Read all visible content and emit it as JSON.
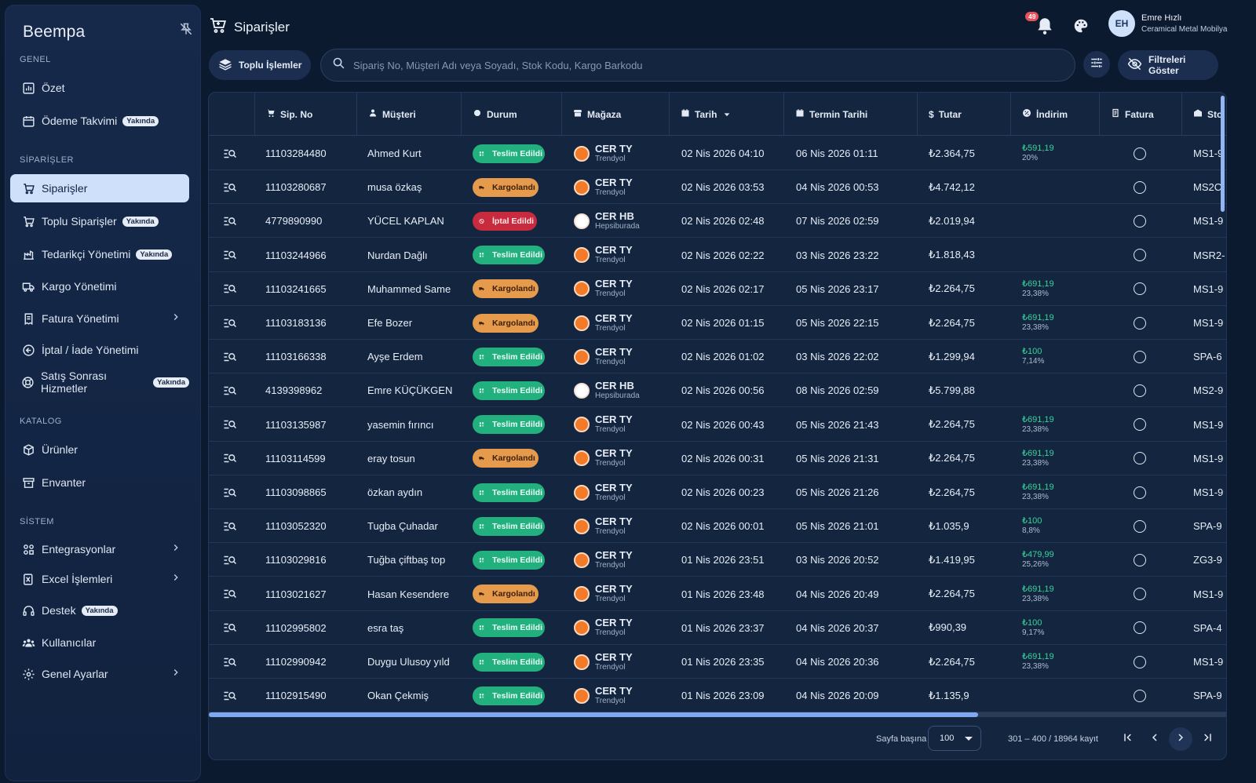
{
  "brand": "Beempa",
  "sidebar": {
    "sections": [
      {
        "label": "GENEL"
      },
      {
        "label": "SİPARİŞLER"
      },
      {
        "label": "KATALOG"
      },
      {
        "label": "SİSTEM"
      }
    ],
    "items": [
      {
        "label": "Özet",
        "icon": "chart-icon"
      },
      {
        "label": "Ödeme Takvimi",
        "badge": "Yakında",
        "icon": "calendar-icon"
      },
      {
        "label": "Siparişler",
        "icon": "cart-icon",
        "active": true
      },
      {
        "label": "Toplu Siparişler",
        "badge": "Yakında",
        "icon": "bulk-cart-icon"
      },
      {
        "label": "Tedarikçi Yönetimi",
        "badge": "Yakında",
        "icon": "supplier-icon"
      },
      {
        "label": "Kargo Yönetimi",
        "icon": "truck-icon"
      },
      {
        "label": "Fatura Yönetimi",
        "icon": "invoice-icon",
        "expandable": true
      },
      {
        "label": "İptal / İade Yönetimi",
        "icon": "return-icon"
      },
      {
        "label": "Satış Sonrası Hizmetler",
        "badge": "Yakında",
        "icon": "support-icon"
      },
      {
        "label": "Ürünler",
        "icon": "box-icon"
      },
      {
        "label": "Envanter",
        "icon": "inventory-icon"
      },
      {
        "label": "Entegrasyonlar",
        "icon": "integration-icon",
        "expandable": true
      },
      {
        "label": "Excel İşlemleri",
        "icon": "excel-icon",
        "expandable": true
      },
      {
        "label": "Destek",
        "badge": "Yakında",
        "icon": "headset-icon"
      },
      {
        "label": "Kullanıcılar",
        "icon": "users-icon"
      },
      {
        "label": "Genel Ayarlar",
        "icon": "gear-icon",
        "expandable": true
      }
    ]
  },
  "header": {
    "title": "Siparişler",
    "notification_count": "49",
    "user_initials": "EH",
    "user_name": "Emre Hızlı",
    "user_org": "Ceramical Metal Mobilya"
  },
  "toolbar": {
    "bulk_label": "Toplu İşlemler",
    "search_placeholder": "Sipariş No, Müşteri Adı veya Soyadı, Stok Kodu, Kargo Barkodu",
    "filter_label": "Filtreleri Göster"
  },
  "table": {
    "columns": [
      "Sip. No",
      "Müşteri",
      "Durum",
      "Mağaza",
      "Tarih",
      "Termin Tarihi",
      "Tutar",
      "İndirim",
      "Fatura",
      "Sto"
    ],
    "rows": [
      {
        "no": "11103284480",
        "customer": "Ahmed Kurt",
        "status": "Teslim Edildi",
        "kind": "green",
        "store": "CER TY",
        "store_sub": "Trendyol",
        "date": "02 Nis 2026 04:10",
        "deadline": "06 Nis 2026 01:11",
        "amount": "₺2.364,75",
        "disc": "₺591,19",
        "disc_pct": "20%",
        "stock": "MS1-9"
      },
      {
        "no": "11103280687",
        "customer": "musa özkaş",
        "status": "Kargolandı",
        "kind": "orange",
        "store": "CER TY",
        "store_sub": "Trendyol",
        "date": "02 Nis 2026 03:53",
        "deadline": "04 Nis 2026 00:53",
        "amount": "₺4.742,12",
        "disc": "",
        "disc_pct": "",
        "stock": "MS2C"
      },
      {
        "no": "4779890990",
        "customer": "YÜCEL KAPLAN",
        "status": "İptal Edildi",
        "kind": "red",
        "store": "CER HB",
        "store_sub": "Hepsiburada",
        "date": "02 Nis 2026 02:48",
        "deadline": "07 Nis 2026 02:59",
        "amount": "₺2.019,94",
        "disc": "",
        "disc_pct": "",
        "stock": "MS1-9"
      },
      {
        "no": "11103244966",
        "customer": "Nurdan Dağlı",
        "status": "Teslim Edildi",
        "kind": "green",
        "store": "CER TY",
        "store_sub": "Trendyol",
        "date": "02 Nis 2026 02:22",
        "deadline": "03 Nis 2026 23:22",
        "amount": "₺1.818,43",
        "disc": "",
        "disc_pct": "",
        "stock": "MSR2-"
      },
      {
        "no": "11103241665",
        "customer": "Muhammed Same",
        "status": "Kargolandı",
        "kind": "orange",
        "store": "CER TY",
        "store_sub": "Trendyol",
        "date": "02 Nis 2026 02:17",
        "deadline": "05 Nis 2026 23:17",
        "amount": "₺2.264,75",
        "disc": "₺691,19",
        "disc_pct": "23,38%",
        "stock": "MS1-9"
      },
      {
        "no": "11103183136",
        "customer": "Efe Bozer",
        "status": "Kargolandı",
        "kind": "orange",
        "store": "CER TY",
        "store_sub": "Trendyol",
        "date": "02 Nis 2026 01:15",
        "deadline": "05 Nis 2026 22:15",
        "amount": "₺2.264,75",
        "disc": "₺691,19",
        "disc_pct": "23,38%",
        "stock": "MS1-9"
      },
      {
        "no": "11103166338",
        "customer": "Ayşe Erdem",
        "status": "Teslim Edildi",
        "kind": "green",
        "store": "CER TY",
        "store_sub": "Trendyol",
        "date": "02 Nis 2026 01:02",
        "deadline": "03 Nis 2026 22:02",
        "amount": "₺1.299,94",
        "disc": "₺100",
        "disc_pct": "7,14%",
        "stock": "SPA-6"
      },
      {
        "no": "4139398962",
        "customer": "Emre KÜÇÜKGEN",
        "status": "Teslim Edildi",
        "kind": "green",
        "store": "CER HB",
        "store_sub": "Hepsiburada",
        "date": "02 Nis 2026 00:56",
        "deadline": "08 Nis 2026 02:59",
        "amount": "₺5.799,88",
        "disc": "",
        "disc_pct": "",
        "stock": "MS2-9"
      },
      {
        "no": "11103135987",
        "customer": "yasemin fırıncı",
        "status": "Teslim Edildi",
        "kind": "green",
        "store": "CER TY",
        "store_sub": "Trendyol",
        "date": "02 Nis 2026 00:43",
        "deadline": "05 Nis 2026 21:43",
        "amount": "₺2.264,75",
        "disc": "₺691,19",
        "disc_pct": "23,38%",
        "stock": "MS1-9"
      },
      {
        "no": "11103114599",
        "customer": "eray tosun",
        "status": "Kargolandı",
        "kind": "orange",
        "store": "CER TY",
        "store_sub": "Trendyol",
        "date": "02 Nis 2026 00:31",
        "deadline": "05 Nis 2026 21:31",
        "amount": "₺2.264,75",
        "disc": "₺691,19",
        "disc_pct": "23,38%",
        "stock": "MS1-9"
      },
      {
        "no": "11103098865",
        "customer": "özkan aydın",
        "status": "Teslim Edildi",
        "kind": "green",
        "store": "CER TY",
        "store_sub": "Trendyol",
        "date": "02 Nis 2026 00:23",
        "deadline": "05 Nis 2026 21:26",
        "amount": "₺2.264,75",
        "disc": "₺691,19",
        "disc_pct": "23,38%",
        "stock": "MS1-9"
      },
      {
        "no": "11103052320",
        "customer": "Tugba Çuhadar",
        "status": "Teslim Edildi",
        "kind": "green",
        "store": "CER TY",
        "store_sub": "Trendyol",
        "date": "02 Nis 2026 00:01",
        "deadline": "05 Nis 2026 21:01",
        "amount": "₺1.035,9",
        "disc": "₺100",
        "disc_pct": "8,8%",
        "stock": "SPA-9"
      },
      {
        "no": "11103029816",
        "customer": "Tuğba çiftbaş top",
        "status": "Teslim Edildi",
        "kind": "green",
        "store": "CER TY",
        "store_sub": "Trendyol",
        "date": "01 Nis 2026 23:51",
        "deadline": "03 Nis 2026 20:52",
        "amount": "₺1.419,95",
        "disc": "₺479,99",
        "disc_pct": "25,26%",
        "stock": "ZG3-9"
      },
      {
        "no": "11103021627",
        "customer": "Hasan Kesendere",
        "status": "Kargolandı",
        "kind": "orange",
        "store": "CER TY",
        "store_sub": "Trendyol",
        "date": "01 Nis 2026 23:48",
        "deadline": "04 Nis 2026 20:49",
        "amount": "₺2.264,75",
        "disc": "₺691,19",
        "disc_pct": "23,38%",
        "stock": "MS1-9"
      },
      {
        "no": "11102995802",
        "customer": "esra taş",
        "status": "Teslim Edildi",
        "kind": "green",
        "store": "CER TY",
        "store_sub": "Trendyol",
        "date": "01 Nis 2026 23:37",
        "deadline": "04 Nis 2026 20:37",
        "amount": "₺990,39",
        "disc": "₺100",
        "disc_pct": "9,17%",
        "stock": "SPA-4"
      },
      {
        "no": "11102990942",
        "customer": "Duygu Ulusoy yıld",
        "status": "Teslim Edildi",
        "kind": "green",
        "store": "CER TY",
        "store_sub": "Trendyol",
        "date": "01 Nis 2026 23:35",
        "deadline": "04 Nis 2026 20:36",
        "amount": "₺2.264,75",
        "disc": "₺691,19",
        "disc_pct": "23,38%",
        "stock": "MS1-9"
      },
      {
        "no": "11102915490",
        "customer": "Okan Çekmiş",
        "status": "Teslim Edildi",
        "kind": "green",
        "store": "CER TY",
        "store_sub": "Trendyol",
        "date": "01 Nis 2026 23:09",
        "deadline": "04 Nis 2026 20:09",
        "amount": "₺1.135,9",
        "disc": "",
        "disc_pct": "",
        "stock": "SPA-9"
      }
    ]
  },
  "footer": {
    "per_page_label": "Sayfa başına",
    "per_page_value": "100",
    "range_text": "301 – 400 / 18964 kayıt"
  },
  "colors": {
    "status_green": "#23b07f",
    "status_orange": "#e59a4c",
    "status_red": "#c82b3d",
    "active_nav": "#cfe0fb",
    "discount_green": "#37d39b"
  }
}
